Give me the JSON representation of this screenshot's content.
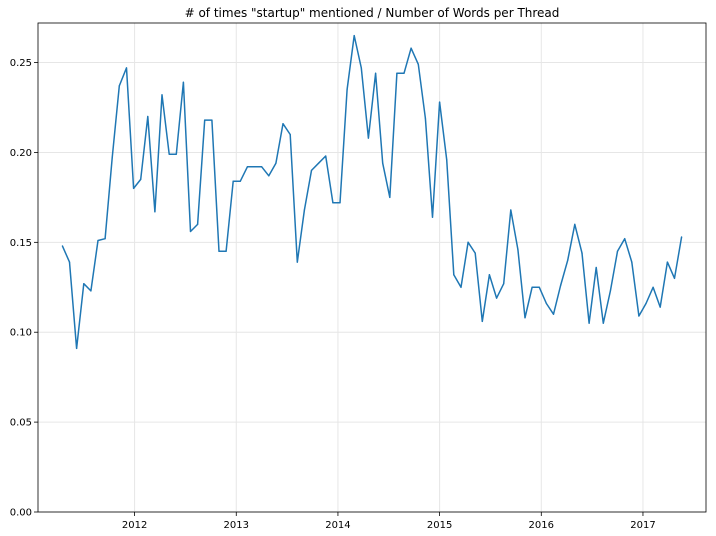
{
  "chart_data": {
    "type": "line",
    "title": "# of times \"startup\" mentioned / Number of Words per Thread",
    "xlabel": "",
    "ylabel": "",
    "grid": true,
    "xlim": [
      2011.05,
      2017.62
    ],
    "ylim": [
      0,
      0.272
    ],
    "x_ticks": [
      {
        "value": 2012,
        "label": "2012"
      },
      {
        "value": 2013,
        "label": "2013"
      },
      {
        "value": 2014,
        "label": "2014"
      },
      {
        "value": 2015,
        "label": "2015"
      },
      {
        "value": 2016,
        "label": "2016"
      },
      {
        "value": 2017,
        "label": "2017"
      }
    ],
    "y_ticks": [
      {
        "value": 0.0,
        "label": "0.00"
      },
      {
        "value": 0.05,
        "label": "0.05"
      },
      {
        "value": 0.1,
        "label": "0.10"
      },
      {
        "value": 0.15,
        "label": "0.15"
      },
      {
        "value": 0.2,
        "label": "0.20"
      },
      {
        "value": 0.25,
        "label": "0.25"
      }
    ],
    "series": [
      {
        "color": "#1f77b4",
        "x": [
          2011.29,
          2011.36,
          2011.43,
          2011.5,
          2011.57,
          2011.64,
          2011.71,
          2011.78,
          2011.85,
          2011.92,
          2011.99,
          2012.06,
          2012.13,
          2012.2,
          2012.27,
          2012.34,
          2012.41,
          2012.48,
          2012.55,
          2012.62,
          2012.69,
          2012.76,
          2012.83,
          2012.9,
          2012.97,
          2013.04,
          2013.11,
          2013.18,
          2013.25,
          2013.32,
          2013.39,
          2013.46,
          2013.53,
          2013.6,
          2013.67,
          2013.74,
          2013.81,
          2013.88,
          2013.95,
          2014.02,
          2014.09,
          2014.16,
          2014.23,
          2014.3,
          2014.37,
          2014.44,
          2014.51,
          2014.58,
          2014.65,
          2014.72,
          2014.79,
          2014.86,
          2014.93,
          2015.0,
          2015.07,
          2015.14,
          2015.21,
          2015.28,
          2015.35,
          2015.42,
          2015.49,
          2015.56,
          2015.63,
          2015.7,
          2015.77,
          2015.84,
          2015.91,
          2015.98,
          2016.05,
          2016.12,
          2016.19,
          2016.26,
          2016.33,
          2016.4,
          2016.47,
          2016.54,
          2016.61,
          2016.68,
          2016.75,
          2016.82,
          2016.89,
          2016.96,
          2017.03,
          2017.1,
          2017.17,
          2017.24,
          2017.31,
          2017.38
        ],
        "y": [
          0.148,
          0.139,
          0.091,
          0.127,
          0.123,
          0.151,
          0.152,
          0.197,
          0.237,
          0.247,
          0.18,
          0.185,
          0.22,
          0.167,
          0.232,
          0.199,
          0.199,
          0.239,
          0.156,
          0.16,
          0.218,
          0.218,
          0.145,
          0.145,
          0.184,
          0.184,
          0.192,
          0.192,
          0.192,
          0.187,
          0.194,
          0.216,
          0.21,
          0.139,
          0.168,
          0.19,
          0.194,
          0.198,
          0.172,
          0.172,
          0.235,
          0.265,
          0.247,
          0.208,
          0.244,
          0.194,
          0.175,
          0.244,
          0.244,
          0.258,
          0.249,
          0.219,
          0.164,
          0.228,
          0.196,
          0.132,
          0.125,
          0.15,
          0.144,
          0.106,
          0.132,
          0.119,
          0.127,
          0.168,
          0.146,
          0.108,
          0.125,
          0.125,
          0.116,
          0.11,
          0.126,
          0.14,
          0.16,
          0.144,
          0.105,
          0.136,
          0.105,
          0.123,
          0.145,
          0.152,
          0.139,
          0.109,
          0.116,
          0.125,
          0.114,
          0.139,
          0.13,
          0.153
        ]
      }
    ]
  }
}
